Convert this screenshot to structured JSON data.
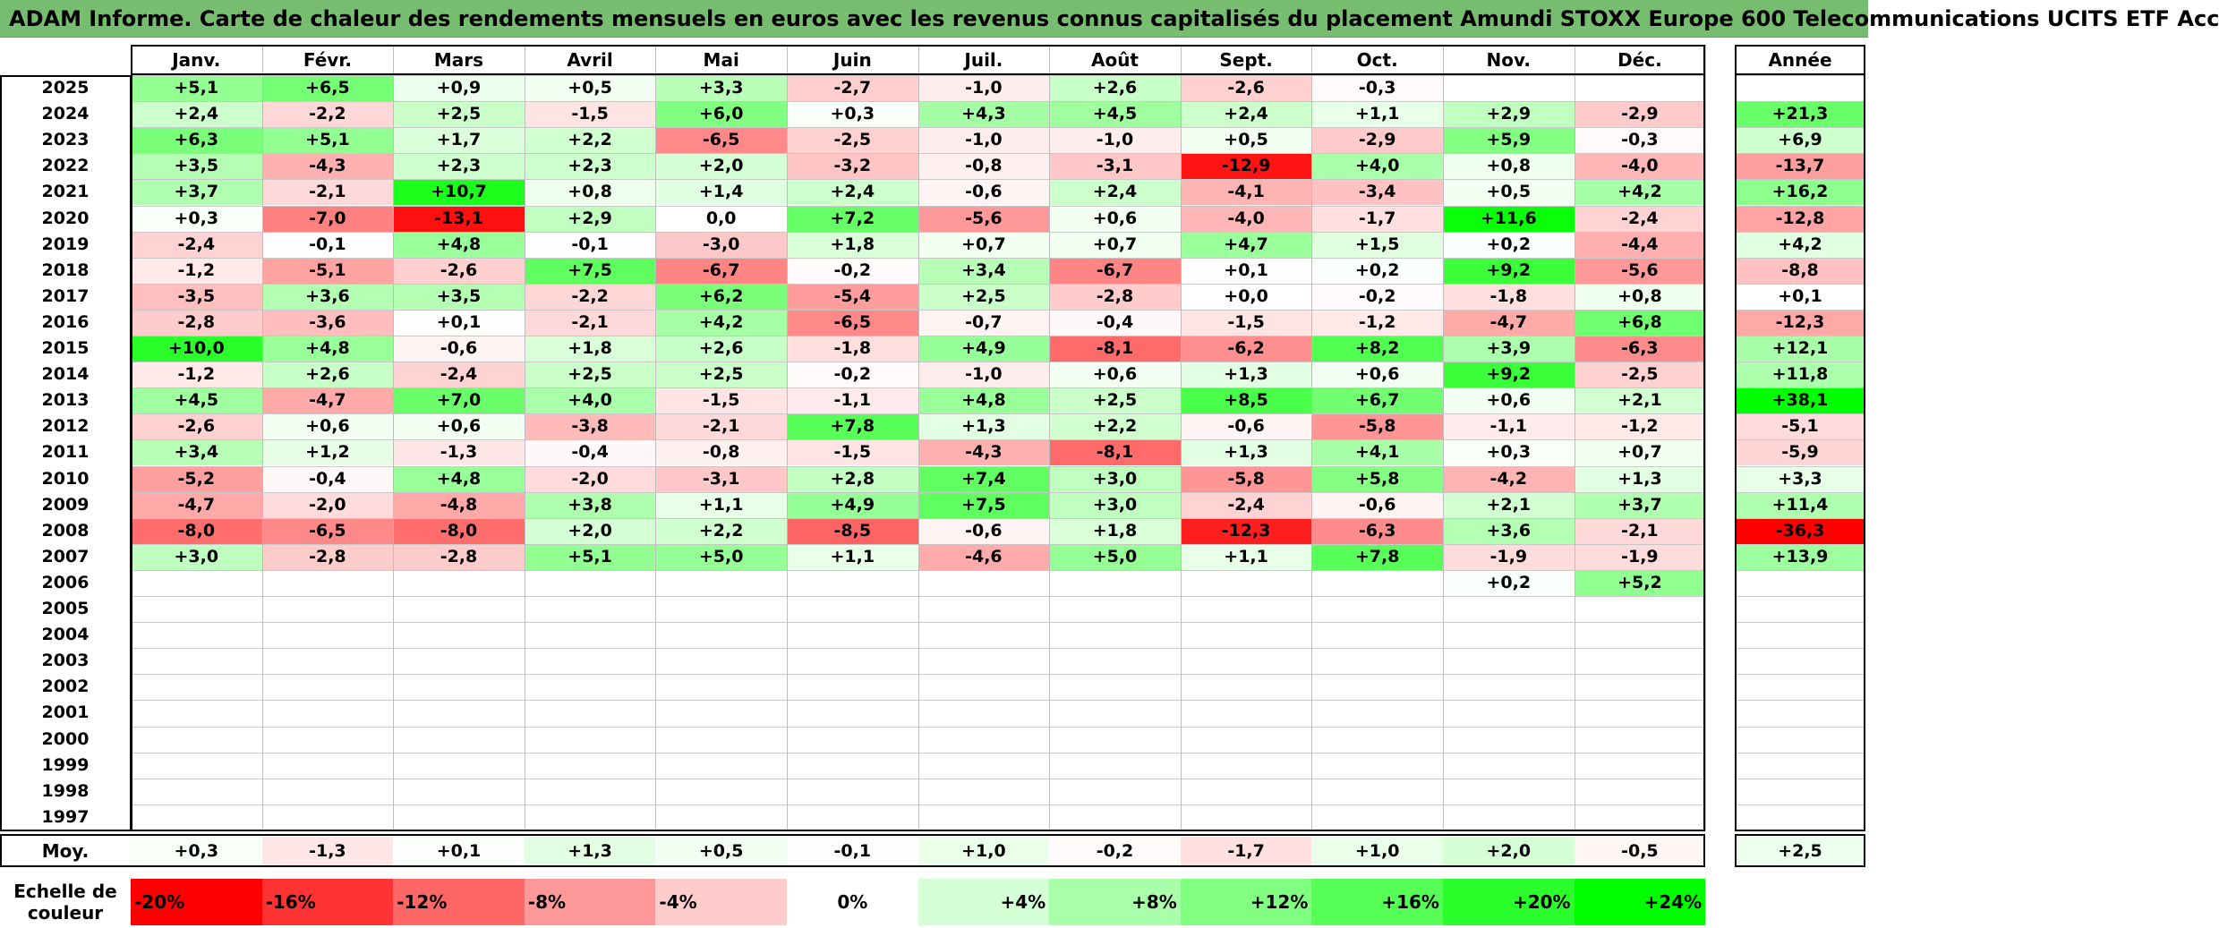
{
  "title": "ADAM Informe. Carte de chaleur des rendements mensuels en euros avec les revenus connus capitalisés du placement Amundi STOXX Europe 600 Telecommunications UCITS ETF Acc",
  "chart_data": {
    "type": "heatmap",
    "months": [
      "Janv.",
      "Févr.",
      "Mars",
      "Avril",
      "Mai",
      "Juin",
      "Juil.",
      "Août",
      "Sept.",
      "Oct.",
      "Nov.",
      "Déc."
    ],
    "year_header": "Année",
    "years": [
      "2025",
      "2024",
      "2023",
      "2022",
      "2021",
      "2020",
      "2019",
      "2018",
      "2017",
      "2016",
      "2015",
      "2014",
      "2013",
      "2012",
      "2011",
      "2010",
      "2009",
      "2008",
      "2007",
      "2006",
      "2005",
      "2004",
      "2003",
      "2002",
      "2001",
      "2000",
      "1999",
      "1998",
      "1997"
    ],
    "values": [
      [
        "+5,1",
        "+6,5",
        "+0,9",
        "+0,5",
        "+3,3",
        "-2,7",
        "-1,0",
        "+2,6",
        "-2,6",
        "-0,3",
        "",
        ""
      ],
      [
        "+2,4",
        "-2,2",
        "+2,5",
        "-1,5",
        "+6,0",
        "+0,3",
        "+4,3",
        "+4,5",
        "+2,4",
        "+1,1",
        "+2,9",
        "-2,9"
      ],
      [
        "+6,3",
        "+5,1",
        "+1,7",
        "+2,2",
        "-6,5",
        "-2,5",
        "-1,0",
        "-1,0",
        "+0,5",
        "-2,9",
        "+5,9",
        "-0,3"
      ],
      [
        "+3,5",
        "-4,3",
        "+2,3",
        "+2,3",
        "+2,0",
        "-3,2",
        "-0,8",
        "-3,1",
        "-12,9",
        "+4,0",
        "+0,8",
        "-4,0"
      ],
      [
        "+3,7",
        "-2,1",
        "+10,7",
        "+0,8",
        "+1,4",
        "+2,4",
        "-0,6",
        "+2,4",
        "-4,1",
        "-3,4",
        "+0,5",
        "+4,2"
      ],
      [
        "+0,3",
        "-7,0",
        "-13,1",
        "+2,9",
        "0,0",
        "+7,2",
        "-5,6",
        "+0,6",
        "-4,0",
        "-1,7",
        "+11,6",
        "-2,4"
      ],
      [
        "-2,4",
        "-0,1",
        "+4,8",
        "-0,1",
        "-3,0",
        "+1,8",
        "+0,7",
        "+0,7",
        "+4,7",
        "+1,5",
        "+0,2",
        "-4,4"
      ],
      [
        "-1,2",
        "-5,1",
        "-2,6",
        "+7,5",
        "-6,7",
        "-0,2",
        "+3,4",
        "-6,7",
        "+0,1",
        "+0,2",
        "+9,2",
        "-5,6"
      ],
      [
        "-3,5",
        "+3,6",
        "+3,5",
        "-2,2",
        "+6,2",
        "-5,4",
        "+2,5",
        "-2,8",
        "+0,0",
        "-0,2",
        "-1,8",
        "+0,8"
      ],
      [
        "-2,8",
        "-3,6",
        "+0,1",
        "-2,1",
        "+4,2",
        "-6,5",
        "-0,7",
        "-0,4",
        "-1,5",
        "-1,2",
        "-4,7",
        "+6,8"
      ],
      [
        "+10,0",
        "+4,8",
        "-0,6",
        "+1,8",
        "+2,6",
        "-1,8",
        "+4,9",
        "-8,1",
        "-6,2",
        "+8,2",
        "+3,9",
        "-6,3"
      ],
      [
        "-1,2",
        "+2,6",
        "-2,4",
        "+2,5",
        "+2,5",
        "-0,2",
        "-1,0",
        "+0,6",
        "+1,3",
        "+0,6",
        "+9,2",
        "-2,5"
      ],
      [
        "+4,5",
        "-4,7",
        "+7,0",
        "+4,0",
        "-1,5",
        "-1,1",
        "+4,8",
        "+2,5",
        "+8,5",
        "+6,7",
        "+0,6",
        "+2,1"
      ],
      [
        "-2,6",
        "+0,6",
        "+0,6",
        "-3,8",
        "-2,1",
        "+7,8",
        "+1,3",
        "+2,2",
        "-0,6",
        "-5,8",
        "-1,1",
        "-1,2"
      ],
      [
        "+3,4",
        "+1,2",
        "-1,3",
        "-0,4",
        "-0,8",
        "-1,5",
        "-4,3",
        "-8,1",
        "+1,3",
        "+4,1",
        "+0,3",
        "+0,7"
      ],
      [
        "-5,2",
        "-0,4",
        "+4,8",
        "-2,0",
        "-3,1",
        "+2,8",
        "+7,4",
        "+3,0",
        "-5,8",
        "+5,8",
        "-4,2",
        "+1,3"
      ],
      [
        "-4,7",
        "-2,0",
        "-4,8",
        "+3,8",
        "+1,1",
        "+4,9",
        "+7,5",
        "+3,0",
        "-2,4",
        "-0,6",
        "+2,1",
        "+3,7"
      ],
      [
        "-8,0",
        "-6,5",
        "-8,0",
        "+2,0",
        "+2,2",
        "-8,5",
        "-0,6",
        "+1,8",
        "-12,3",
        "-6,3",
        "+3,6",
        "-2,1"
      ],
      [
        "+3,0",
        "-2,8",
        "-2,8",
        "+5,1",
        "+5,0",
        "+1,1",
        "-4,6",
        "+5,0",
        "+1,1",
        "+7,8",
        "-1,9",
        "-1,9"
      ],
      [
        "",
        "",
        "",
        "",
        "",
        "",
        "",
        "",
        "",
        "",
        "+0,2",
        "+5,2"
      ],
      [
        "",
        "",
        "",
        "",
        "",
        "",
        "",
        "",
        "",
        "",
        "",
        ""
      ],
      [
        "",
        "",
        "",
        "",
        "",
        "",
        "",
        "",
        "",
        "",
        "",
        ""
      ],
      [
        "",
        "",
        "",
        "",
        "",
        "",
        "",
        "",
        "",
        "",
        "",
        ""
      ],
      [
        "",
        "",
        "",
        "",
        "",
        "",
        "",
        "",
        "",
        "",
        "",
        ""
      ],
      [
        "",
        "",
        "",
        "",
        "",
        "",
        "",
        "",
        "",
        "",
        "",
        ""
      ],
      [
        "",
        "",
        "",
        "",
        "",
        "",
        "",
        "",
        "",
        "",
        "",
        ""
      ],
      [
        "",
        "",
        "",
        "",
        "",
        "",
        "",
        "",
        "",
        "",
        "",
        ""
      ],
      [
        "",
        "",
        "",
        "",
        "",
        "",
        "",
        "",
        "",
        "",
        "",
        ""
      ],
      [
        "",
        "",
        "",
        "",
        "",
        "",
        "",
        "",
        "",
        "",
        "",
        ""
      ]
    ],
    "annual": [
      "",
      "+21,3",
      "+6,9",
      "-13,7",
      "+16,2",
      "-12,8",
      "+4,2",
      "-8,8",
      "+0,1",
      "-12,3",
      "+12,1",
      "+11,8",
      "+38,1",
      "-5,1",
      "-5,9",
      "+3,3",
      "+11,4",
      "-36,3",
      "+13,9",
      "",
      "",
      "",
      "",
      "",
      "",
      "",
      "",
      "",
      ""
    ],
    "average_label": "Moy.",
    "averages": [
      "+0,3",
      "-1,3",
      "+0,1",
      "+1,3",
      "+0,5",
      "-0,1",
      "+1,0",
      "-0,2",
      "-1,7",
      "+1,0",
      "+2,0",
      "-0,5"
    ],
    "average_annual": "+2,5",
    "scale_label": "Echelle de couleur",
    "scale": [
      "-20%",
      "-16%",
      "-12%",
      "-8%",
      "-4%",
      "0%",
      "+4%",
      "+8%",
      "+12%",
      "+16%",
      "+20%",
      "+24%"
    ],
    "scale_values": [
      -20,
      -16,
      -12,
      -8,
      -4,
      0,
      4,
      8,
      12,
      16,
      20,
      24
    ],
    "colors": {
      "negative": "#ff0000",
      "neutral": "#ffffff",
      "positive": "#00ff00"
    }
  }
}
